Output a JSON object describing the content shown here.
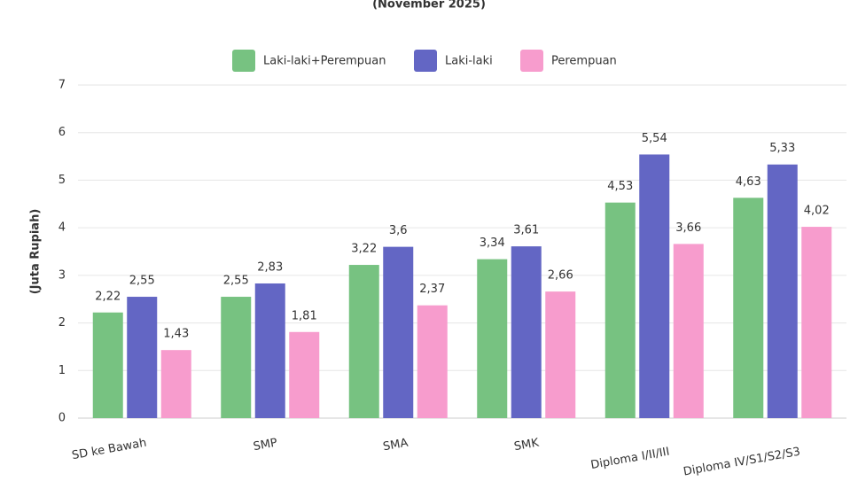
{
  "chart_data": {
    "type": "bar",
    "subtitle": "(November 2025)",
    "y_label": "(Juta Rupiah)",
    "categories": [
      "SD ke Bawah",
      "SMP",
      "SMA",
      "SMK",
      "Diploma I/II/III",
      "Diploma IV/S1/S2/S3"
    ],
    "series": [
      {
        "name": "Laki-laki+Perempuan",
        "color": "#77c281",
        "values": [
          2.22,
          2.55,
          3.22,
          3.34,
          4.53,
          4.63
        ],
        "value_labels": [
          "2,22",
          "2,55",
          "3,22",
          "3,34",
          "4,53",
          "4,63"
        ]
      },
      {
        "name": "Laki-laki",
        "color": "#6366c4",
        "values": [
          2.55,
          2.83,
          3.6,
          3.61,
          5.54,
          5.33
        ],
        "value_labels": [
          "2,55",
          "2,83",
          "3,6",
          "3,61",
          "5,54",
          "5,33"
        ]
      },
      {
        "name": "Perempuan",
        "color": "#f79ccd",
        "values": [
          1.43,
          1.81,
          2.37,
          2.66,
          3.66,
          4.02
        ],
        "value_labels": [
          "1,43",
          "1,81",
          "2,37",
          "2,66",
          "3,66",
          "4,02"
        ]
      }
    ],
    "ylim": [
      0,
      7
    ],
    "yticks": [
      0,
      1,
      2,
      3,
      4,
      5,
      6,
      7
    ],
    "grid": true,
    "legend": "top"
  }
}
